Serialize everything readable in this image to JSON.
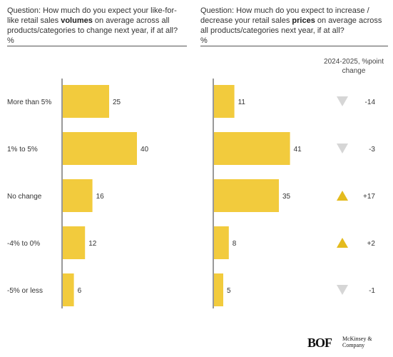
{
  "left_question": {
    "pre": "Question: How much do you expect your like-for-like retail sales ",
    "bold": "volumes",
    "post": " on average across all products/categories to change next year, if at all?",
    "unit": "%"
  },
  "right_question": {
    "pre": "Question: How much do you expect to increase / decrease your retail sales ",
    "bold": "prices",
    "post": " on average across all products/categories next year, if at all?",
    "unit": "%"
  },
  "change_header": "2024-2025, %point change",
  "logos": {
    "bof": "BOF",
    "mckinsey": "McKinsey & Company"
  },
  "colors": {
    "bar": "#f2cb3d",
    "up": "#e4bb1e",
    "down": "#d6d6d6",
    "axis": "#333333"
  },
  "chart_data": [
    {
      "type": "bar",
      "orientation": "horizontal",
      "categories": [
        "More than 5%",
        "1% to 5%",
        "No change",
        "-4% to 0%",
        "-5% or less"
      ],
      "values": [
        25,
        40,
        16,
        12,
        6
      ],
      "unit": "%"
    },
    {
      "type": "bar",
      "orientation": "horizontal",
      "categories": [
        "More than 5%",
        "1% to 5%",
        "No change",
        "-4% to 0%",
        "-5% or less"
      ],
      "values": [
        11,
        41,
        35,
        8,
        5
      ],
      "unit": "%",
      "change": {
        "values": [
          -14,
          -3,
          17,
          2,
          -1
        ],
        "labels": [
          "-14",
          "-3",
          "+17",
          "+2",
          "-1"
        ]
      }
    }
  ]
}
